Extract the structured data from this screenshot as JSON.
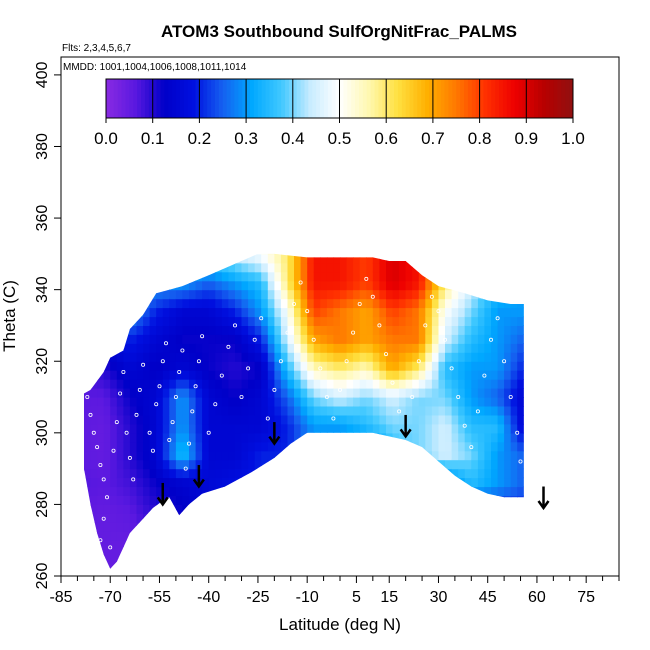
{
  "chart_data": {
    "type": "heatmap",
    "title": "ATOM3 Southbound SulfOrgNitFrac_PALMS",
    "flights_label": "Flts: 2,3,4,5,6,7",
    "mmdd_label": "MMDD: 1001,1004,1006,1008,1011,1014",
    "xlabel": "Latitude (deg N)",
    "ylabel": "Theta (C)",
    "xlim": [
      -85,
      85
    ],
    "ylim": [
      260,
      405
    ],
    "x_tick_labels": [
      "-85",
      "-70",
      "-55",
      "-40",
      "-25",
      "-10",
      "5",
      "15",
      "30",
      "45",
      "60",
      "75"
    ],
    "x_tick_values": [
      -85,
      -70,
      -55,
      -40,
      -25,
      -10,
      5,
      15,
      30,
      45,
      60,
      75
    ],
    "y_tick_labels": [
      "260",
      "280",
      "300",
      "320",
      "340",
      "360",
      "380",
      "400"
    ],
    "y_tick_values": [
      260,
      280,
      300,
      320,
      340,
      360,
      380,
      400
    ],
    "colorbar": {
      "range": [
        0.0,
        1.0
      ],
      "tick_labels": [
        "0.0",
        "0.1",
        "0.2",
        "0.3",
        "0.4",
        "0.5",
        "0.6",
        "0.7",
        "0.8",
        "0.9",
        "1.0"
      ],
      "colors": [
        "#8a2be2",
        "#5a18e0",
        "#0000c8",
        "#0010e0",
        "#1560f0",
        "#00a8ff",
        "#40c8ff",
        "#c8ecff",
        "#ffffff",
        "#fff8b0",
        "#ffe040",
        "#ffb000",
        "#ff7800",
        "#ff3000",
        "#ee0000",
        "#b80000",
        "#901010"
      ]
    },
    "boundary": {
      "upper": [
        [
          -78,
          311
        ],
        [
          -76,
          312
        ],
        [
          -72,
          317
        ],
        [
          -70,
          321
        ],
        [
          -66,
          323
        ],
        [
          -64,
          329
        ],
        [
          -60,
          333
        ],
        [
          -56,
          339
        ],
        [
          -52,
          340
        ],
        [
          -48,
          341
        ],
        [
          -40,
          344
        ],
        [
          -30,
          348
        ],
        [
          -25,
          350
        ],
        [
          -20,
          350
        ],
        [
          -10,
          349
        ],
        [
          0,
          349
        ],
        [
          10,
          349
        ],
        [
          15,
          348
        ],
        [
          20,
          348
        ],
        [
          25,
          344
        ],
        [
          30,
          341
        ],
        [
          38,
          339
        ],
        [
          45,
          337
        ],
        [
          52,
          336
        ],
        [
          56,
          336
        ]
      ],
      "lower": [
        [
          -78,
          290
        ],
        [
          -76,
          280
        ],
        [
          -74,
          272
        ],
        [
          -72,
          266
        ],
        [
          -70,
          262
        ],
        [
          -68,
          264
        ],
        [
          -66,
          268
        ],
        [
          -64,
          272
        ],
        [
          -60,
          276
        ],
        [
          -57,
          279
        ],
        [
          -54,
          281
        ],
        [
          -52,
          282
        ],
        [
          -49,
          277
        ],
        [
          -46,
          280
        ],
        [
          -42,
          283
        ],
        [
          -35,
          285
        ],
        [
          -27,
          289
        ],
        [
          -20,
          293
        ],
        [
          -15,
          297
        ],
        [
          -10,
          300
        ],
        [
          0,
          300
        ],
        [
          10,
          300
        ],
        [
          20,
          298
        ],
        [
          25,
          296
        ],
        [
          30,
          292
        ],
        [
          35,
          288
        ],
        [
          40,
          285
        ],
        [
          45,
          283
        ],
        [
          50,
          282
        ],
        [
          56,
          282
        ]
      ]
    },
    "grid_values": {
      "x": [
        -80,
        -72,
        -64,
        -56,
        -48,
        -40,
        -32,
        -24,
        -16,
        -8,
        0,
        8,
        16,
        24,
        32,
        40,
        48,
        56
      ],
      "y": [
        262,
        270,
        278,
        286,
        294,
        302,
        310,
        318,
        326,
        334,
        342,
        350
      ],
      "z": [
        [
          0.05,
          0.05,
          0.05,
          0.1,
          0.1,
          0.15,
          0.2,
          0.2,
          0.2,
          0.2,
          0.2,
          0.2,
          0.2,
          0.2,
          0.2,
          0.2,
          0.2,
          0.2
        ],
        [
          0.05,
          0.05,
          0.05,
          0.08,
          0.1,
          0.15,
          0.2,
          0.2,
          0.2,
          0.2,
          0.2,
          0.2,
          0.2,
          0.2,
          0.2,
          0.2,
          0.2,
          0.2
        ],
        [
          0.06,
          0.05,
          0.06,
          0.1,
          0.12,
          0.15,
          0.2,
          0.2,
          0.2,
          0.2,
          0.2,
          0.2,
          0.2,
          0.2,
          0.2,
          0.2,
          0.2,
          0.2
        ],
        [
          0.07,
          0.06,
          0.08,
          0.12,
          0.14,
          0.16,
          0.18,
          0.2,
          0.2,
          0.2,
          0.2,
          0.2,
          0.2,
          0.2,
          0.25,
          0.35,
          0.3,
          0.25
        ],
        [
          0.06,
          0.05,
          0.1,
          0.15,
          0.35,
          0.15,
          0.15,
          0.2,
          0.2,
          0.3,
          0.3,
          0.2,
          0.35,
          0.4,
          0.45,
          0.4,
          0.3,
          0.25
        ],
        [
          0.06,
          0.05,
          0.1,
          0.15,
          0.3,
          0.15,
          0.15,
          0.15,
          0.2,
          0.3,
          0.3,
          0.35,
          0.4,
          0.4,
          0.45,
          0.35,
          0.35,
          0.15
        ],
        [
          0.06,
          0.06,
          0.12,
          0.15,
          0.3,
          0.15,
          0.12,
          0.15,
          0.25,
          0.4,
          0.45,
          0.4,
          0.45,
          0.4,
          0.4,
          0.3,
          0.25,
          0.15
        ],
        [
          0.08,
          0.1,
          0.15,
          0.12,
          0.15,
          0.12,
          0.1,
          0.12,
          0.35,
          0.55,
          0.6,
          0.55,
          0.7,
          0.6,
          0.35,
          0.3,
          0.3,
          0.2
        ],
        [
          0.1,
          0.15,
          0.2,
          0.15,
          0.12,
          0.12,
          0.12,
          0.2,
          0.45,
          0.7,
          0.75,
          0.7,
          0.75,
          0.75,
          0.45,
          0.35,
          0.3,
          0.25
        ],
        [
          0.25,
          0.3,
          0.3,
          0.2,
          0.15,
          0.15,
          0.2,
          0.3,
          0.5,
          0.8,
          0.75,
          0.7,
          0.8,
          0.75,
          0.5,
          0.4,
          0.3,
          0.3
        ],
        [
          0.3,
          0.3,
          0.3,
          0.3,
          0.3,
          0.25,
          0.3,
          0.35,
          0.6,
          0.85,
          0.85,
          0.8,
          0.9,
          0.85,
          0.6,
          0.45,
          0.35,
          0.3
        ],
        [
          0.3,
          0.3,
          0.3,
          0.3,
          0.35,
          0.4,
          0.45,
          0.5,
          0.6,
          0.85,
          0.85,
          0.8,
          0.9,
          0.85,
          0.6,
          0.45,
          0.35,
          0.3
        ]
      ]
    },
    "flight_points": [
      [
        -77,
        310
      ],
      [
        -76,
        305
      ],
      [
        -75,
        300
      ],
      [
        -74,
        296
      ],
      [
        -73,
        291
      ],
      [
        -72,
        287
      ],
      [
        -71,
        282
      ],
      [
        -72,
        276
      ],
      [
        -73,
        270
      ],
      [
        -70,
        268
      ],
      [
        -69,
        295
      ],
      [
        -68,
        303
      ],
      [
        -67,
        311
      ],
      [
        -66,
        317
      ],
      [
        -65,
        300
      ],
      [
        -64,
        293
      ],
      [
        -63,
        287
      ],
      [
        -62,
        305
      ],
      [
        -61,
        312
      ],
      [
        -60,
        319
      ],
      [
        -58,
        300
      ],
      [
        -57,
        295
      ],
      [
        -56,
        308
      ],
      [
        -55,
        313
      ],
      [
        -54,
        320
      ],
      [
        -53,
        325
      ],
      [
        -52,
        298
      ],
      [
        -51,
        303
      ],
      [
        -50,
        310
      ],
      [
        -49,
        317
      ],
      [
        -48,
        323
      ],
      [
        -47,
        290
      ],
      [
        -46,
        297
      ],
      [
        -45,
        306
      ],
      [
        -44,
        313
      ],
      [
        -43,
        320
      ],
      [
        -42,
        327
      ],
      [
        -40,
        300
      ],
      [
        -38,
        308
      ],
      [
        -36,
        316
      ],
      [
        -34,
        324
      ],
      [
        -32,
        330
      ],
      [
        -30,
        310
      ],
      [
        -28,
        318
      ],
      [
        -26,
        326
      ],
      [
        -24,
        332
      ],
      [
        -22,
        304
      ],
      [
        -20,
        312
      ],
      [
        -18,
        320
      ],
      [
        -16,
        328
      ],
      [
        -14,
        336
      ],
      [
        -12,
        342
      ],
      [
        -10,
        334
      ],
      [
        -8,
        326
      ],
      [
        -6,
        318
      ],
      [
        -4,
        310
      ],
      [
        -2,
        304
      ],
      [
        0,
        312
      ],
      [
        2,
        320
      ],
      [
        4,
        328
      ],
      [
        6,
        336
      ],
      [
        8,
        343
      ],
      [
        10,
        338
      ],
      [
        12,
        330
      ],
      [
        14,
        322
      ],
      [
        16,
        314
      ],
      [
        18,
        306
      ],
      [
        20,
        300
      ],
      [
        22,
        310
      ],
      [
        24,
        320
      ],
      [
        26,
        330
      ],
      [
        28,
        338
      ],
      [
        30,
        334
      ],
      [
        32,
        326
      ],
      [
        34,
        318
      ],
      [
        36,
        310
      ],
      [
        38,
        302
      ],
      [
        40,
        296
      ],
      [
        42,
        306
      ],
      [
        44,
        316
      ],
      [
        46,
        326
      ],
      [
        48,
        332
      ],
      [
        50,
        320
      ],
      [
        52,
        310
      ],
      [
        54,
        300
      ],
      [
        55,
        292
      ]
    ],
    "arrows": [
      {
        "x": -54,
        "y_top": 286,
        "y_bottom": 280
      },
      {
        "x": -43,
        "y_top": 291,
        "y_bottom": 285
      },
      {
        "x": -20,
        "y_top": 303,
        "y_bottom": 297
      },
      {
        "x": 20,
        "y_top": 305,
        "y_bottom": 299
      },
      {
        "x": 62,
        "y_top": 285,
        "y_bottom": 279
      }
    ]
  }
}
